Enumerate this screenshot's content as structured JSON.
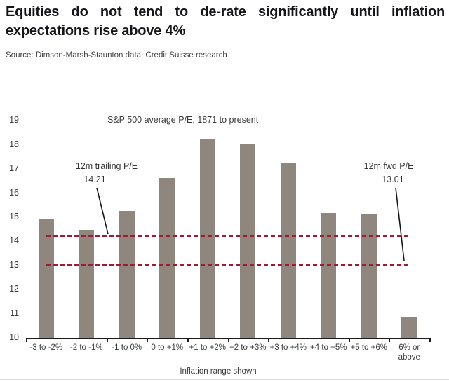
{
  "title": {
    "line1": "Equities do not tend to de-rate significantly until inflation",
    "line2": "expectations rise above 4%"
  },
  "source": "Source: Dimson-Marsh-Staunton data, Credit Suisse research",
  "colors": {
    "bar": "#8F877D",
    "reference_line": "#9E1B32",
    "axis": "#1b1b1b",
    "text": "#3a3a3a"
  },
  "chart_data": {
    "type": "bar",
    "title": "S&P 500 average P/E, 1871 to present",
    "categories": [
      "-3 to -2%",
      "-2 to -1%",
      "-1 to 0%",
      "0 to +1%",
      "+1 to +2%",
      "+2 to +3%",
      "+3 to +4%",
      "+4 to +5%",
      "+5 to +6%",
      "6% or above"
    ],
    "values": [
      14.9,
      14.45,
      15.25,
      16.6,
      18.25,
      18.05,
      17.25,
      15.15,
      15.1,
      10.85
    ],
    "xlabel": "Inflation range shown",
    "ylabel": "",
    "ylim": [
      10,
      19
    ],
    "yticks": [
      10,
      11,
      12,
      13,
      14,
      15,
      16,
      17,
      18,
      19
    ],
    "grid": false,
    "legend_position": "none",
    "reference_lines": [
      {
        "label": "12m trailing P/E",
        "value_label": "14.21",
        "value": 14.21
      },
      {
        "label": "12m fwd P/E",
        "value_label": "13.01",
        "value": 13.01
      }
    ]
  }
}
